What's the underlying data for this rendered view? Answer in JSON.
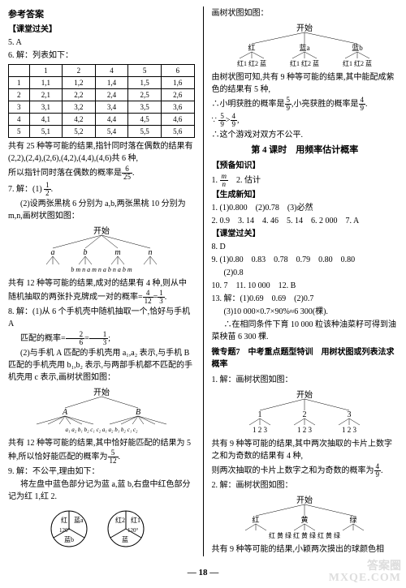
{
  "header": {
    "title": "参考答案"
  },
  "left": {
    "sec1": "【课堂过关】",
    "q5": "5. A",
    "q6": "6. 解：列表如下：",
    "table": {
      "cols": [
        "",
        "1",
        "2",
        "4",
        "5",
        "6"
      ],
      "rows": [
        [
          "1",
          "1,1",
          "1,2",
          "1,4",
          "1,5",
          "1,6"
        ],
        [
          "2",
          "2,1",
          "2,2",
          "2,4",
          "2,5",
          "2,6"
        ],
        [
          "3",
          "3,1",
          "3,2",
          "3,4",
          "3,5",
          "3,6"
        ],
        [
          "4",
          "4,1",
          "4,2",
          "4,4",
          "4,5",
          "4,6"
        ],
        [
          "5",
          "5,1",
          "5,2",
          "5,4",
          "5,5",
          "5,6"
        ]
      ]
    },
    "q6_text1": "共有 25 种等可能的结果,指针同时落在偶数的结果有(2,2),(2,4),(2,6),(4,2),(4,4),(4,6)共 6 种,",
    "q6_text2_a": "所以指针同时落在偶数的概率是",
    "q6_frac": {
      "n": "6",
      "d": "25"
    },
    "q7": "7. 解：(1)",
    "q7_frac": {
      "n": "1",
      "d": "2"
    },
    "q7_2": "(2)设两张黑桃 6 分别为 a,b,两张黑桃 10 分别为 m,n,画树状图如图：",
    "tree1_root": "开始",
    "tree1_l2": [
      "a",
      "b",
      "m",
      "n"
    ],
    "tree1_l3": "b m n   a m n   a b n   a b m",
    "q7_3a": "共有 12 种等可能的结果,成对的结果有 4 种,则从中随机抽取的两张扑克牌成一对的概率=",
    "q7_frac2": {
      "n": "4",
      "d": "12"
    },
    "q7_frac3": {
      "n": "1",
      "d": "3"
    },
    "q8": "8. 解：(1)从 6 个手机壳中随机抽取一个,恰好与手机 A",
    "q8_b": "匹配的概率=",
    "q8_frac1": {
      "n": "2",
      "d": "6"
    },
    "q8_frac2": {
      "n": "1",
      "d": "3"
    },
    "q8_2": "(2)与手机 A 匹配的手机壳用 a₁,a₂ 表示,与手机 B 匹配的手机壳用 b₁,b₂ 表示,与两部手机都不匹配的手机壳用 c 表示,画树状图如图：",
    "tree2_root": "开始",
    "tree2_l2": [
      "A",
      "B"
    ],
    "tree2_l3": "a₁ a₂ b₁ b₂ c₁ c₂    a₁ a₂ b₁ b₂ c₁ c₂",
    "q8_3a": "共有 12 种等可能的结果,其中恰好能匹配的结果为 5 种,所以恰好能匹配的概率为",
    "q8_frac3": {
      "n": "5",
      "d": "12"
    },
    "q9": "9. 解：不公平,理由如下：",
    "q9_2": "将左盘中蓝色部分记为蓝 a,蓝 b,右盘中红色部分记为红 1,红 2.",
    "circle1_labels": [
      "红",
      "蓝a",
      "蓝b"
    ],
    "circle1_angle": "120°",
    "circle2_labels": [
      "蓝",
      "红1",
      "红2"
    ],
    "circle2_angle": "120°"
  },
  "right": {
    "r1": "画树状图如图：",
    "tree3_root": "开始",
    "tree3_l2": [
      "红",
      "蓝a",
      "蓝b"
    ],
    "tree3_l3l": "红1 红2 蓝",
    "r2": "由树状图可知,共有 9 种等可能的结果,其中能配成紫色的结果有 5 种,",
    "r3a": "∴小明获胜的概率是",
    "r3_frac1": {
      "n": "5",
      "d": "9"
    },
    "r3b": ",小亮获胜的概率是",
    "r3_frac2": {
      "n": "4",
      "d": "9"
    },
    "r4a": "∵",
    "r4b": ">",
    "r5": "∴这个游戏对双方不公平.",
    "lesson4": "第 4 课时　用频率估计概率",
    "sec_prep": "【预备知识】",
    "prep1": "1.",
    "prep1_frac": {
      "n": "m",
      "d": "n"
    },
    "prep1b": "　2. 估计",
    "sec_gen": "【生成新知】",
    "gen1": "1. (1)0.800　(2)0.78　(3)必然",
    "gen2": "2. 0.9　3. 14　4. 46　5. 14　6. 2 000　7. A",
    "sec_class": "【课堂过关】",
    "c8": "8. D",
    "c9": "9. (1)0.80　0.83　0.78　0.79　0.80　0.80",
    "c9_2": "(2)0.8",
    "c10": "10. 7　11. 10 000　12. B",
    "c13": "13. 解：(1)0.69　0.69　(2)0.7",
    "c13_3": "(3)10 000×0.7×90%≈6 300(棵).",
    "c13_4": "∴在相同条件下育 10 000 粒该种油菜籽可得到油菜秧苗 6 300 棵.",
    "micro": "微专题7　中考重点题型特训　用树状图或列表法求概率",
    "m1": "1. 解：画树状图如图：",
    "tree4_root": "开始",
    "tree4_l2": [
      "1",
      "2",
      "3"
    ],
    "tree4_l3": "1  2  3",
    "m1_2a": "共有 9 种等可能的结果,其中两次抽取的卡片上数字之和为奇数的结果有 4 种,",
    "m1_3a": "则两次抽取的卡片上数字之和为奇数的概率为",
    "m1_frac": {
      "n": "4",
      "d": "9"
    },
    "m2": "2. 解：画树状图如图：",
    "tree5_root": "开始",
    "tree5_l2": [
      "红",
      "黄",
      "绿"
    ],
    "tree5_l3": "红 黄 绿  红 黄 绿  红 黄 绿",
    "m2_2": "共有 9 种等可能的结果,小颖两次摸出的球颜色相"
  },
  "pagenum": "18"
}
